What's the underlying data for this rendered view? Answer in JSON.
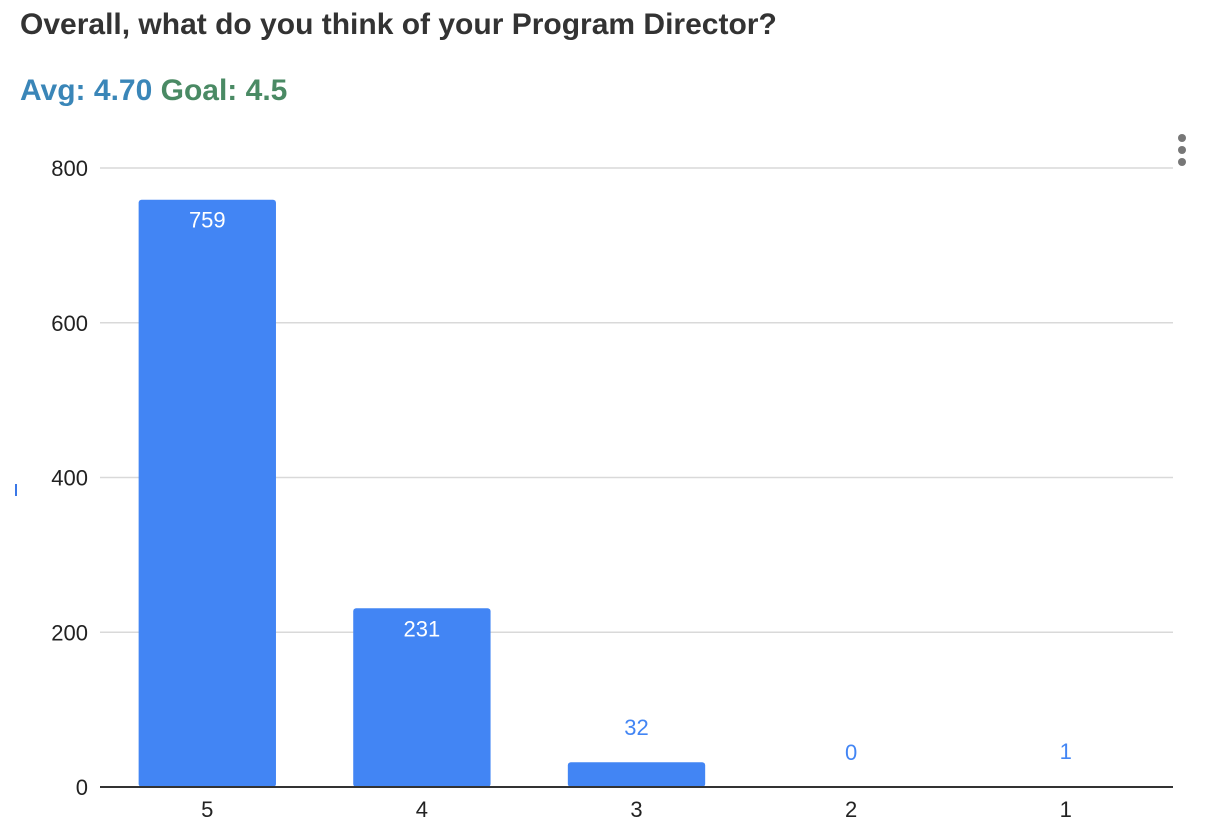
{
  "header": {
    "question": "Overall, what do you think of your Program Director?",
    "avg_label": "Avg: 4.70",
    "goal_label": "Goal: 4.5"
  },
  "colors": {
    "bar": "#4285f4",
    "label_inside": "#ffffff",
    "label_outside": "#4285f4",
    "gridline": "#d9d9d9",
    "axis": "#333333"
  },
  "chart_data": {
    "type": "bar",
    "categories": [
      "5",
      "4",
      "3",
      "2",
      "1"
    ],
    "values": [
      759,
      231,
      32,
      0,
      1
    ],
    "data_labels": [
      "759",
      "231",
      "32",
      "0",
      "1"
    ],
    "title": "",
    "xlabel": "",
    "ylabel": "",
    "ylim": [
      0,
      800
    ],
    "yticks": [
      "0",
      "200",
      "400",
      "600",
      "800"
    ],
    "grid": true,
    "legend": "none"
  }
}
